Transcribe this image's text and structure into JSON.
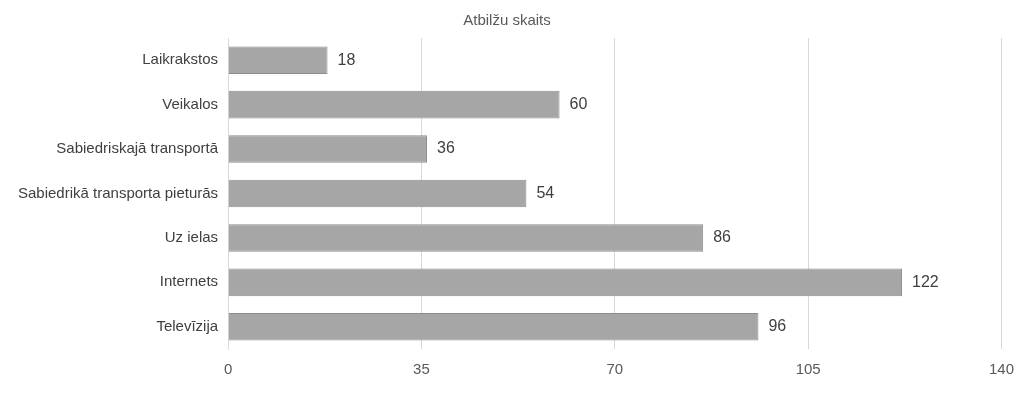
{
  "chart_data": {
    "type": "bar",
    "orientation": "horizontal",
    "title": "Atbilžu skaits",
    "categories": [
      "Laikrakstos",
      "Veikalos",
      "Sabiedriskajā transportā",
      "Sabiedrikā transporta pieturās",
      "Uz ielas",
      "Internets",
      "Televīzija"
    ],
    "values": [
      18,
      60,
      36,
      54,
      86,
      122,
      96
    ],
    "color": "#a6a6a6",
    "xlim": [
      0,
      140
    ],
    "xticks": [
      0,
      35,
      70,
      105,
      140
    ],
    "grid": "x",
    "data_labels": true,
    "legend": false
  }
}
